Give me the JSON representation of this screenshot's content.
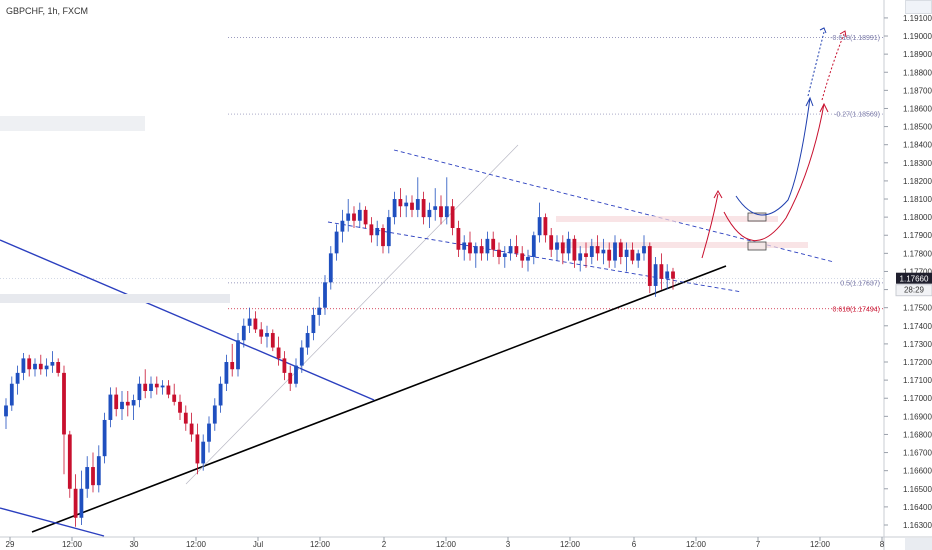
{
  "title": "GBPCHF, 1h, FXCM",
  "colors": {
    "up": "#1f4fbf",
    "down": "#c8102e",
    "trendline": "#000000",
    "channel": "#2b3fbf",
    "fib": "#7a7aa8",
    "projection_blue": "#1f3faf",
    "projection_red": "#c8102e"
  },
  "chart_data": {
    "type": "candlestick",
    "symbol": "GBPCHF",
    "interval": "1h",
    "source": "FXCM",
    "y_axis": {
      "ticks": [
        "1.19100",
        "1.19000",
        "1.18900",
        "1.18800",
        "1.18700",
        "1.18600",
        "1.18500",
        "1.18400",
        "1.18300",
        "1.18200",
        "1.18100",
        "1.18000",
        "1.17900",
        "1.17800",
        "1.17700",
        "1.17600",
        "1.17500",
        "1.17400",
        "1.17300",
        "1.17200",
        "1.17100",
        "1.17000",
        "1.16900",
        "1.16800",
        "1.16700",
        "1.16600",
        "1.16500",
        "1.16400",
        "1.16300"
      ],
      "range": [
        1.1625,
        1.1915
      ]
    },
    "x_axis": {
      "ticks": [
        "29",
        "12:00",
        "30",
        "12:00",
        "Jul",
        "12:00",
        "2",
        "12:00",
        "3",
        "12:00",
        "6",
        "12:00",
        "7",
        "12:00",
        "8"
      ]
    },
    "price_labels": {
      "last": "1.17660",
      "countdown": "28:29"
    },
    "fib_levels": [
      {
        "label": "-0.618(1.18991)",
        "value": 1.18991
      },
      {
        "label": "-0.27(1.18569)",
        "value": 1.18569
      },
      {
        "label": "0.5(1.17637)",
        "value": 1.17637
      },
      {
        "label": "0.618(1.17494)",
        "value": 1.17494
      }
    ],
    "candles": [
      [
        1.169,
        1.17,
        1.1683,
        1.1696
      ],
      [
        1.1696,
        1.1712,
        1.1693,
        1.1708
      ],
      [
        1.1708,
        1.1718,
        1.1702,
        1.1714
      ],
      [
        1.1714,
        1.1725,
        1.171,
        1.1722
      ],
      [
        1.1722,
        1.1724,
        1.1712,
        1.1716
      ],
      [
        1.1716,
        1.1722,
        1.1712,
        1.1719
      ],
      [
        1.1719,
        1.1724,
        1.1713,
        1.1716
      ],
      [
        1.1716,
        1.1722,
        1.1712,
        1.1718
      ],
      [
        1.1718,
        1.1726,
        1.1714,
        1.172
      ],
      [
        1.172,
        1.1722,
        1.1712,
        1.1714
      ],
      [
        1.1714,
        1.1718,
        1.1658,
        1.168
      ],
      [
        1.168,
        1.1682,
        1.1645,
        1.165
      ],
      [
        1.165,
        1.1658,
        1.1629,
        1.1634
      ],
      [
        1.1634,
        1.166,
        1.163,
        1.165
      ],
      [
        1.165,
        1.1668,
        1.1645,
        1.1662
      ],
      [
        1.1662,
        1.167,
        1.1648,
        1.1652
      ],
      [
        1.1652,
        1.1674,
        1.1648,
        1.1668
      ],
      [
        1.1668,
        1.1692,
        1.1664,
        1.1688
      ],
      [
        1.1688,
        1.1706,
        1.1684,
        1.1702
      ],
      [
        1.1702,
        1.1706,
        1.169,
        1.1694
      ],
      [
        1.1694,
        1.1704,
        1.1688,
        1.1698
      ],
      [
        1.1698,
        1.1704,
        1.169,
        1.1696
      ],
      [
        1.1696,
        1.1702,
        1.1688,
        1.1699
      ],
      [
        1.1699,
        1.1712,
        1.1695,
        1.1708
      ],
      [
        1.1708,
        1.1716,
        1.17,
        1.1704
      ],
      [
        1.1704,
        1.1712,
        1.17,
        1.1708
      ],
      [
        1.1708,
        1.1712,
        1.1702,
        1.1706
      ],
      [
        1.1706,
        1.171,
        1.1702,
        1.1707
      ],
      [
        1.1707,
        1.171,
        1.17,
        1.1702
      ],
      [
        1.1702,
        1.1708,
        1.1696,
        1.1698
      ],
      [
        1.1698,
        1.1702,
        1.1688,
        1.1692
      ],
      [
        1.1692,
        1.1696,
        1.1682,
        1.1686
      ],
      [
        1.1686,
        1.1692,
        1.1676,
        1.168
      ],
      [
        1.168,
        1.1686,
        1.1658,
        1.1664
      ],
      [
        1.1664,
        1.168,
        1.166,
        1.1676
      ],
      [
        1.1676,
        1.169,
        1.167,
        1.1686
      ],
      [
        1.1686,
        1.17,
        1.1682,
        1.1696
      ],
      [
        1.1696,
        1.1712,
        1.1692,
        1.1708
      ],
      [
        1.1708,
        1.1724,
        1.1704,
        1.172
      ],
      [
        1.172,
        1.173,
        1.1712,
        1.1716
      ],
      [
        1.1716,
        1.1736,
        1.1712,
        1.1732
      ],
      [
        1.1732,
        1.1744,
        1.1728,
        1.174
      ],
      [
        1.174,
        1.175,
        1.1736,
        1.1744
      ],
      [
        1.1744,
        1.1748,
        1.1736,
        1.1738
      ],
      [
        1.1738,
        1.1742,
        1.173,
        1.1734
      ],
      [
        1.1734,
        1.174,
        1.1728,
        1.1736
      ],
      [
        1.1736,
        1.1738,
        1.1726,
        1.1728
      ],
      [
        1.1728,
        1.1734,
        1.1718,
        1.1722
      ],
      [
        1.1722,
        1.1726,
        1.171,
        1.1714
      ],
      [
        1.1714,
        1.1718,
        1.1704,
        1.1708
      ],
      [
        1.1708,
        1.1722,
        1.1706,
        1.1718
      ],
      [
        1.1718,
        1.1732,
        1.1714,
        1.1728
      ],
      [
        1.1728,
        1.174,
        1.1724,
        1.1736
      ],
      [
        1.1736,
        1.175,
        1.1732,
        1.1746
      ],
      [
        1.1746,
        1.1756,
        1.174,
        1.175
      ],
      [
        1.175,
        1.1768,
        1.1746,
        1.1764
      ],
      [
        1.1764,
        1.1784,
        1.176,
        1.178
      ],
      [
        1.178,
        1.1796,
        1.1776,
        1.1792
      ],
      [
        1.1792,
        1.1804,
        1.1786,
        1.1798
      ],
      [
        1.1798,
        1.181,
        1.1792,
        1.1802
      ],
      [
        1.1802,
        1.1806,
        1.1794,
        1.1798
      ],
      [
        1.1798,
        1.1808,
        1.1794,
        1.1804
      ],
      [
        1.1804,
        1.1806,
        1.1794,
        1.1796
      ],
      [
        1.1796,
        1.18,
        1.1786,
        1.179
      ],
      [
        1.179,
        1.1798,
        1.1784,
        1.1794
      ],
      [
        1.1794,
        1.1796,
        1.178,
        1.1784
      ],
      [
        1.1784,
        1.1804,
        1.178,
        1.18
      ],
      [
        1.18,
        1.1814,
        1.1796,
        1.181
      ],
      [
        1.181,
        1.1816,
        1.18,
        1.1806
      ],
      [
        1.1806,
        1.1812,
        1.18,
        1.1808
      ],
      [
        1.1808,
        1.1812,
        1.18,
        1.1804
      ],
      [
        1.1804,
        1.1822,
        1.18,
        1.181
      ],
      [
        1.181,
        1.1814,
        1.1796,
        1.18
      ],
      [
        1.18,
        1.1808,
        1.1794,
        1.1804
      ],
      [
        1.1804,
        1.1816,
        1.1798,
        1.1806
      ],
      [
        1.1806,
        1.1812,
        1.1796,
        1.18
      ],
      [
        1.18,
        1.1822,
        1.1796,
        1.1806
      ],
      [
        1.1806,
        1.181,
        1.179,
        1.1794
      ],
      [
        1.1794,
        1.1798,
        1.1778,
        1.1782
      ],
      [
        1.1782,
        1.179,
        1.1776,
        1.1786
      ],
      [
        1.1786,
        1.1792,
        1.1776,
        1.178
      ],
      [
        1.178,
        1.1786,
        1.1772,
        1.1784
      ],
      [
        1.1784,
        1.1788,
        1.1776,
        1.178
      ],
      [
        1.178,
        1.1792,
        1.1776,
        1.1788
      ],
      [
        1.1788,
        1.1792,
        1.1778,
        1.1782
      ],
      [
        1.1782,
        1.1786,
        1.1774,
        1.1778
      ],
      [
        1.1778,
        1.1784,
        1.1772,
        1.178
      ],
      [
        1.178,
        1.1788,
        1.1776,
        1.1784
      ],
      [
        1.1784,
        1.179,
        1.1778,
        1.178
      ],
      [
        1.178,
        1.1784,
        1.1772,
        1.1776
      ],
      [
        1.1776,
        1.1782,
        1.177,
        1.1778
      ],
      [
        1.1778,
        1.1792,
        1.1774,
        1.179
      ],
      [
        1.179,
        1.1808,
        1.1786,
        1.18
      ],
      [
        1.18,
        1.1802,
        1.1786,
        1.179
      ],
      [
        1.179,
        1.1794,
        1.1778,
        1.1782
      ],
      [
        1.1782,
        1.179,
        1.1776,
        1.1786
      ],
      [
        1.1786,
        1.179,
        1.1774,
        1.178
      ],
      [
        1.178,
        1.1792,
        1.1776,
        1.1788
      ],
      [
        1.1788,
        1.179,
        1.1772,
        1.1776
      ],
      [
        1.1776,
        1.1784,
        1.177,
        1.178
      ],
      [
        1.178,
        1.1786,
        1.1772,
        1.1778
      ],
      [
        1.1778,
        1.1788,
        1.1774,
        1.1784
      ],
      [
        1.1784,
        1.179,
        1.1776,
        1.178
      ],
      [
        1.178,
        1.1788,
        1.1774,
        1.1782
      ],
      [
        1.1782,
        1.1786,
        1.1772,
        1.1776
      ],
      [
        1.1776,
        1.179,
        1.1772,
        1.1786
      ],
      [
        1.1786,
        1.1788,
        1.1774,
        1.1778
      ],
      [
        1.1778,
        1.1786,
        1.177,
        1.1782
      ],
      [
        1.1782,
        1.1786,
        1.1774,
        1.1776
      ],
      [
        1.1776,
        1.1782,
        1.1772,
        1.178
      ],
      [
        1.178,
        1.179,
        1.1776,
        1.1784
      ],
      [
        1.1784,
        1.1786,
        1.1758,
        1.1762
      ],
      [
        1.1762,
        1.1778,
        1.1756,
        1.1774
      ],
      [
        1.1774,
        1.178,
        1.176,
        1.1766
      ],
      [
        1.1766,
        1.1774,
        1.176,
        1.177
      ],
      [
        1.177,
        1.1772,
        1.176,
        1.1766
      ]
    ]
  }
}
